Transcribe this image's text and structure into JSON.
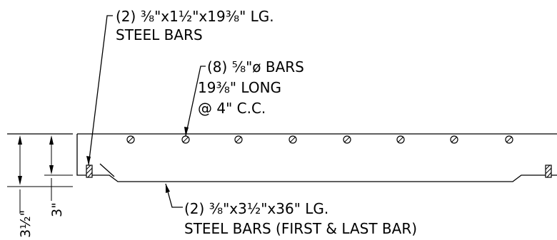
{
  "notes": {
    "top_bars_line1": "(2) ⅜\"x1½\"x19⅜\" LG.",
    "top_bars_line2": "STEEL BARS",
    "round_bars_line1": "(8) ⅝\"ø BARS",
    "round_bars_line2": "19⅜\" LONG",
    "round_bars_line3": "@ 4\" C.C.",
    "bottom_bars_line1": "(2) ⅜\"x3½\"x36\" LG.",
    "bottom_bars_line2": "STEEL BARS (FIRST & LAST BAR)"
  },
  "dimensions": {
    "overall_height": "3½\"",
    "inner_height": "3\""
  },
  "round_bar_count": 8,
  "flat_bar_count": 2
}
